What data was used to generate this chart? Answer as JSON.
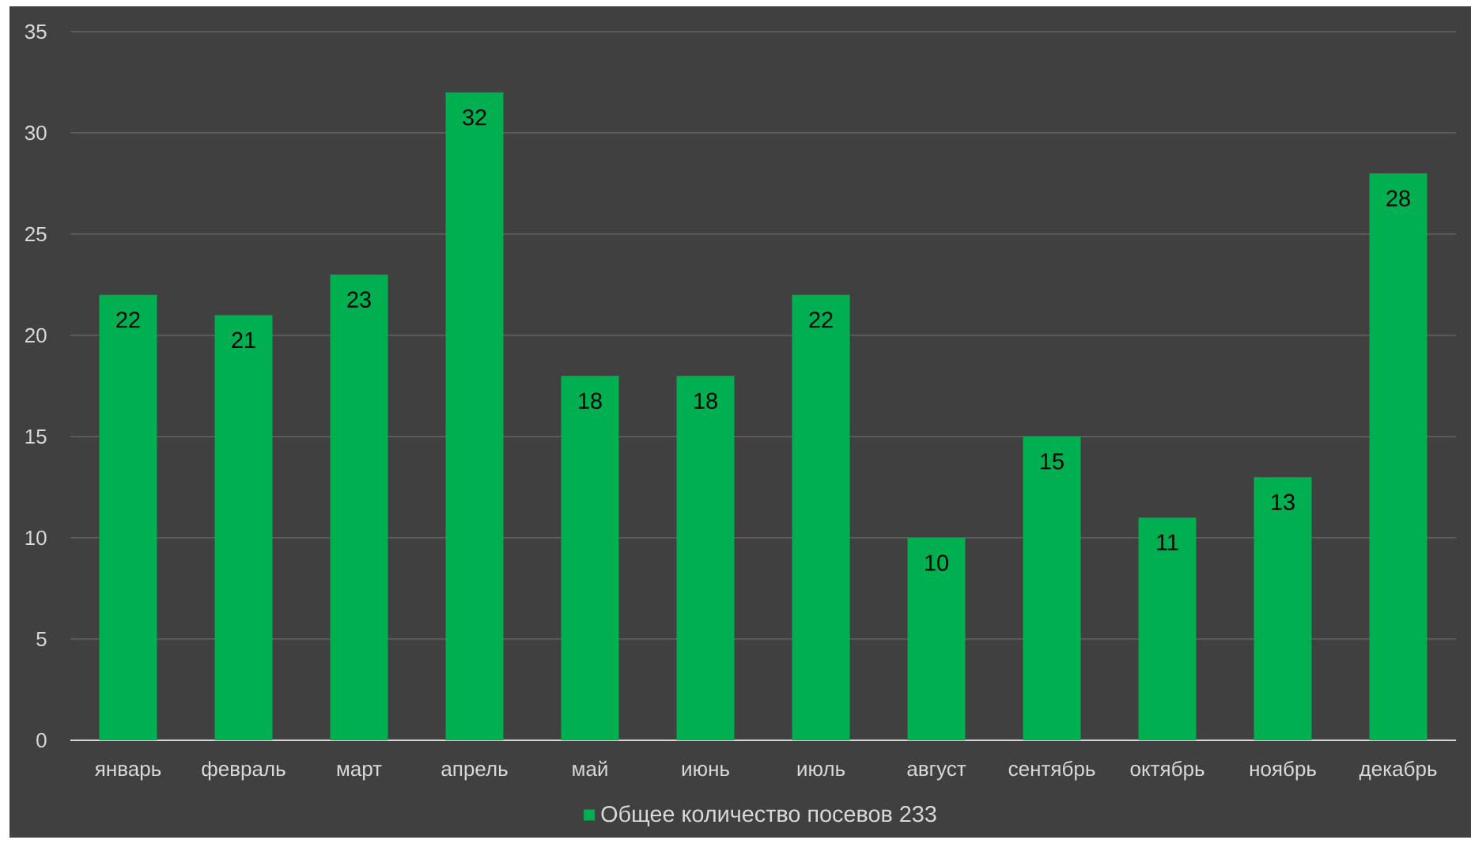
{
  "chart_data": {
    "type": "bar",
    "categories": [
      "январь",
      "февраль",
      "март",
      "апрель",
      "май",
      "июнь",
      "июль",
      "август",
      "сентябрь",
      "октябрь",
      "ноябрь",
      "декабрь"
    ],
    "series": [
      {
        "name": "Общее количество посевов 233",
        "color": "#00b050",
        "values": [
          22,
          21,
          23,
          32,
          18,
          18,
          22,
          10,
          15,
          11,
          13,
          28
        ]
      }
    ],
    "ylim": [
      0,
      35
    ],
    "yticks": [
      0,
      5,
      10,
      15,
      20,
      25,
      30,
      35
    ],
    "grid": "y",
    "legend": "bottom",
    "data_labels": true
  }
}
